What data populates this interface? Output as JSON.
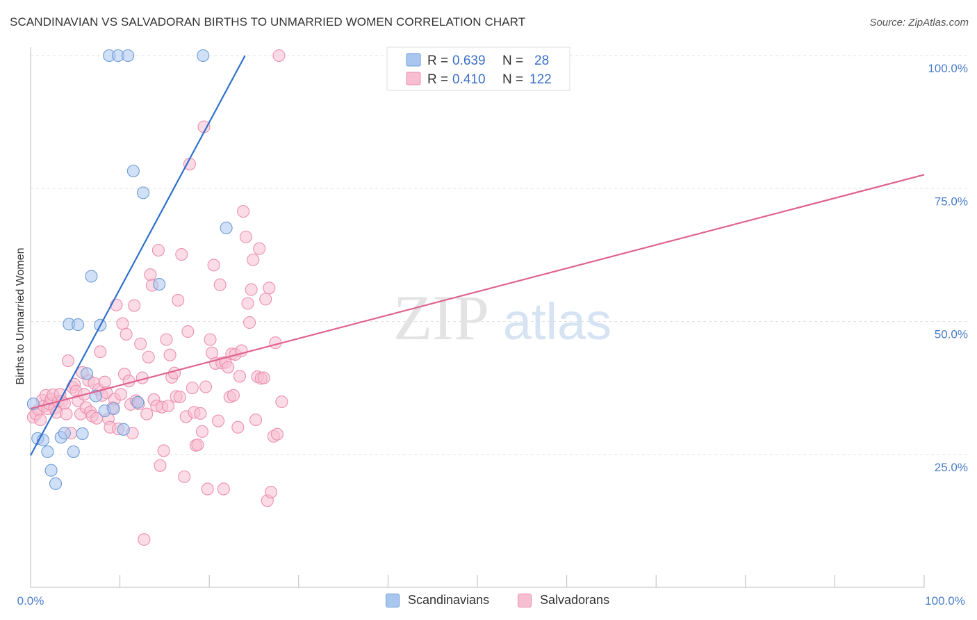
{
  "header": {
    "title": "SCANDINAVIAN VS SALVADORAN BIRTHS TO UNMARRIED WOMEN CORRELATION CHART",
    "source": "Source: ZipAtlas.com"
  },
  "watermark": {
    "zip": "ZIP",
    "atlas": "atlas"
  },
  "legend_box": {
    "rows": [
      {
        "r_label": "R =",
        "r_value": "0.639",
        "n_label": "N =",
        "n_value": "28"
      },
      {
        "r_label": "R =",
        "r_value": "0.410",
        "n_label": "N =",
        "n_value": "122"
      }
    ]
  },
  "chart_data": {
    "type": "scatter",
    "title": "SCANDINAVIAN VS SALVADORAN BIRTHS TO UNMARRIED WOMEN CORRELATION CHART",
    "xlabel": "",
    "ylabel": "Births to Unmarried Women",
    "xlim": [
      0,
      100
    ],
    "ylim": [
      0,
      100
    ],
    "x_tick_labels": [
      "0.0%",
      "100.0%"
    ],
    "y_tick_labels": [
      {
        "value": 25,
        "label": "25.0%"
      },
      {
        "value": 50,
        "label": "50.0%"
      },
      {
        "value": 75,
        "label": "75.0%"
      },
      {
        "value": 100,
        "label": "100.0%"
      }
    ],
    "legend_position": "bottom-center",
    "series": [
      {
        "name": "Scandinavians",
        "color": "#a9c6ee",
        "edge": "#6f9bd6",
        "line_color": "#2f6fcc",
        "r": 0.639,
        "n": 28,
        "trend": {
          "x0": 0,
          "y0": 24.8,
          "x1": 24,
          "y1": 100
        },
        "points": [
          [
            0.3,
            34.5
          ],
          [
            0.8,
            28
          ],
          [
            1.4,
            27.7
          ],
          [
            1.9,
            25.5
          ],
          [
            2.3,
            22
          ],
          [
            2.8,
            19.5
          ],
          [
            3.4,
            28.2
          ],
          [
            3.8,
            29
          ],
          [
            4.3,
            49.5
          ],
          [
            4.8,
            25.5
          ],
          [
            5.3,
            49.4
          ],
          [
            5.8,
            28.9
          ],
          [
            6.3,
            40.2
          ],
          [
            6.8,
            58.5
          ],
          [
            7.3,
            36
          ],
          [
            7.8,
            49.3
          ],
          [
            8.3,
            33.2
          ],
          [
            8.8,
            100
          ],
          [
            9.3,
            33.6
          ],
          [
            9.8,
            100
          ],
          [
            10.4,
            29.7
          ],
          [
            10.9,
            100
          ],
          [
            11.5,
            78.3
          ],
          [
            12,
            34.8
          ],
          [
            12.6,
            74.2
          ],
          [
            14.4,
            57
          ],
          [
            19.3,
            100
          ],
          [
            21.9,
            67.6
          ]
        ]
      },
      {
        "name": "Salvadorans",
        "color": "#f7bdd0",
        "edge": "#ec8fb0",
        "line_color": "#e0628f",
        "r": 0.41,
        "n": 122,
        "trend": {
          "x0": 0,
          "y0": 33.6,
          "x1": 100,
          "y1": 77.6
        },
        "points": [
          [
            0.3,
            32
          ],
          [
            0.6,
            32.6
          ],
          [
            0.9,
            33.4
          ],
          [
            1.1,
            31.5
          ],
          [
            1.3,
            35.2
          ],
          [
            1.5,
            34.1
          ],
          [
            1.7,
            36.1
          ],
          [
            1.9,
            33.6
          ],
          [
            2.1,
            34.5
          ],
          [
            2.3,
            35.4
          ],
          [
            2.5,
            36.2
          ],
          [
            2.7,
            33.7
          ],
          [
            2.9,
            32.9
          ],
          [
            3.1,
            35
          ],
          [
            3.3,
            36.3
          ],
          [
            3.5,
            35
          ],
          [
            3.8,
            34.6
          ],
          [
            4,
            32.6
          ],
          [
            4.2,
            42.6
          ],
          [
            4.5,
            29
          ],
          [
            4.7,
            37.6
          ],
          [
            4.9,
            38.2
          ],
          [
            5.1,
            36.9
          ],
          [
            5.3,
            35.1
          ],
          [
            5.6,
            32.6
          ],
          [
            5.8,
            40.4
          ],
          [
            6,
            36.3
          ],
          [
            6.2,
            33.8
          ],
          [
            6.5,
            38.9
          ],
          [
            6.7,
            33
          ],
          [
            6.9,
            32.2
          ],
          [
            7.1,
            38.4
          ],
          [
            7.4,
            31.8
          ],
          [
            7.6,
            37.2
          ],
          [
            7.8,
            44.3
          ],
          [
            8,
            36.1
          ],
          [
            8.3,
            38.6
          ],
          [
            8.5,
            36.6
          ],
          [
            8.7,
            31.7
          ],
          [
            8.9,
            30.1
          ],
          [
            9.2,
            33.8
          ],
          [
            9.4,
            35.4
          ],
          [
            9.6,
            53.1
          ],
          [
            9.8,
            29.8
          ],
          [
            10.1,
            36.3
          ],
          [
            10.3,
            49.6
          ],
          [
            10.5,
            40.1
          ],
          [
            10.7,
            47.6
          ],
          [
            11,
            38.8
          ],
          [
            11.2,
            34.4
          ],
          [
            11.4,
            29
          ],
          [
            11.6,
            53
          ],
          [
            11.8,
            35.1
          ],
          [
            12.1,
            34.5
          ],
          [
            12.3,
            45.8
          ],
          [
            12.5,
            39.4
          ],
          [
            12.7,
            9
          ],
          [
            13,
            32.6
          ],
          [
            13.2,
            43.3
          ],
          [
            13.4,
            58.8
          ],
          [
            13.6,
            56.8
          ],
          [
            13.8,
            35.3
          ],
          [
            14.1,
            34.1
          ],
          [
            14.3,
            63.4
          ],
          [
            14.5,
            22.9
          ],
          [
            14.7,
            33.9
          ],
          [
            14.9,
            25.7
          ],
          [
            15.2,
            46.6
          ],
          [
            15.4,
            34.1
          ],
          [
            15.6,
            43.7
          ],
          [
            15.8,
            39.5
          ],
          [
            16.1,
            40.3
          ],
          [
            16.3,
            35.9
          ],
          [
            16.5,
            54
          ],
          [
            16.7,
            35.8
          ],
          [
            16.9,
            62.6
          ],
          [
            17.2,
            20.8
          ],
          [
            17.4,
            32.1
          ],
          [
            17.6,
            48.1
          ],
          [
            17.8,
            79.6
          ],
          [
            18.1,
            37.5
          ],
          [
            18.3,
            32.9
          ],
          [
            18.5,
            26.7
          ],
          [
            18.7,
            26.8
          ],
          [
            19,
            32.7
          ],
          [
            19.2,
            29.3
          ],
          [
            19.4,
            86.6
          ],
          [
            19.6,
            37.7
          ],
          [
            19.8,
            18.5
          ],
          [
            20.1,
            46.6
          ],
          [
            20.3,
            44.1
          ],
          [
            20.5,
            60.6
          ],
          [
            20.7,
            42.1
          ],
          [
            21,
            31.3
          ],
          [
            21.2,
            56.9
          ],
          [
            21.4,
            42.2
          ],
          [
            21.6,
            18.5
          ],
          [
            21.8,
            42.3
          ],
          [
            22.1,
            41.4
          ],
          [
            22.3,
            35.8
          ],
          [
            22.5,
            43.9
          ],
          [
            22.7,
            36.1
          ],
          [
            22.9,
            43.8
          ],
          [
            23.2,
            30.1
          ],
          [
            23.4,
            39.7
          ],
          [
            23.6,
            44.5
          ],
          [
            23.8,
            70.7
          ],
          [
            24.1,
            65.9
          ],
          [
            24.3,
            53.4
          ],
          [
            24.5,
            49.8
          ],
          [
            24.7,
            56
          ],
          [
            24.9,
            61.6
          ],
          [
            25.2,
            31.5
          ],
          [
            25.4,
            39.6
          ],
          [
            25.6,
            63.7
          ],
          [
            25.8,
            39.3
          ],
          [
            26.1,
            39.4
          ],
          [
            26.3,
            54.2
          ],
          [
            26.5,
            16.3
          ],
          [
            26.7,
            56.3
          ],
          [
            26.9,
            17.9
          ],
          [
            27.2,
            28.4
          ],
          [
            27.4,
            46
          ],
          [
            27.6,
            28.8
          ],
          [
            27.8,
            100
          ],
          [
            28.1,
            34.9
          ]
        ]
      }
    ]
  },
  "bottom_legend": {
    "items": [
      {
        "label": "Scandinavians"
      },
      {
        "label": "Salvadorans"
      }
    ]
  }
}
